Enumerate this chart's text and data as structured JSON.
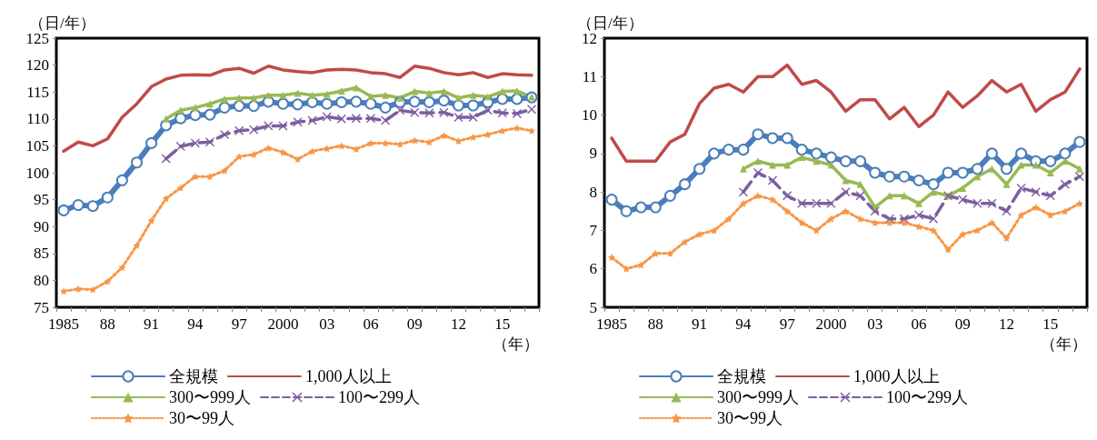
{
  "chart_data": [
    {
      "type": "line",
      "ylabel": "（日/年）",
      "xlabel": "（年）",
      "legend": "bottom",
      "grid": false,
      "categories": [
        "1985",
        null,
        null,
        "88",
        null,
        null,
        "91",
        null,
        null,
        "94",
        null,
        null,
        "97",
        null,
        null,
        "2000",
        null,
        null,
        "03",
        null,
        null,
        "06",
        null,
        null,
        "09",
        null,
        null,
        "12",
        null,
        null,
        "15",
        null,
        null
      ],
      "ylim": [
        75,
        125
      ],
      "yticks": [
        75,
        80,
        85,
        90,
        95,
        100,
        105,
        110,
        115,
        120,
        125
      ],
      "series": [
        {
          "name": "全規模",
          "color": "#4a7ebb",
          "marker": "circle",
          "line_style": "solid",
          "values": [
            93,
            94.0,
            93.8,
            95.4,
            98.6,
            101.9,
            105.5,
            108.8,
            110.1,
            110.7,
            110.8,
            112.1,
            112.4,
            112.4,
            113.2,
            112.8,
            112.7,
            113.1,
            112.8,
            113.1,
            113.2,
            112.8,
            112.1,
            113.1,
            113.2,
            113.1,
            113.4,
            112.5,
            112.5,
            113.1,
            113.7,
            113.7,
            114.0
          ]
        },
        {
          "name": "1,000人以上",
          "color": "#be4b48",
          "marker": "none",
          "line_style": "solid",
          "values": [
            104.0,
            105.7,
            105.0,
            106.3,
            110.3,
            112.8,
            116.0,
            117.4,
            118.1,
            118.2,
            118.1,
            119.1,
            119.4,
            118.5,
            119.8,
            119.1,
            118.8,
            118.6,
            119.1,
            119.2,
            119.1,
            118.6,
            118.4,
            117.7,
            119.8,
            119.4,
            118.6,
            118.2,
            118.6,
            117.7,
            118.4,
            118.2,
            118.1
          ]
        },
        {
          "name": "300〜999人",
          "color": "#98b954",
          "marker": "triangle",
          "line_style": "solid",
          "values": [
            null,
            null,
            null,
            null,
            null,
            null,
            null,
            110.0,
            111.6,
            112.1,
            112.8,
            113.7,
            113.9,
            113.9,
            114.4,
            114.4,
            114.8,
            114.4,
            114.6,
            115.2,
            115.8,
            114.2,
            114.4,
            113.9,
            115.1,
            114.8,
            115.1,
            113.9,
            114.4,
            114.1,
            115.1,
            115.2,
            114.1
          ]
        },
        {
          "name": "100〜299人",
          "color": "#7d5fa0",
          "marker": "cross",
          "line_style": "dashed",
          "values": [
            null,
            null,
            null,
            null,
            null,
            null,
            null,
            102.6,
            104.9,
            105.5,
            105.7,
            107.1,
            107.8,
            108.0,
            108.7,
            108.7,
            109.4,
            109.7,
            110.4,
            110.0,
            110.1,
            110.1,
            109.7,
            111.6,
            111.2,
            111.1,
            111.2,
            110.3,
            110.3,
            111.6,
            111.1,
            111.0,
            111.8
          ]
        },
        {
          "name": "30〜99人",
          "color": "#f79646",
          "marker": "star",
          "line_style": "dotted",
          "values": [
            78.0,
            78.4,
            78.3,
            79.8,
            82.4,
            86.5,
            91.1,
            95.2,
            97.2,
            99.3,
            99.3,
            100.4,
            103.0,
            103.4,
            104.6,
            103.8,
            102.5,
            104.0,
            104.5,
            105.0,
            104.4,
            105.5,
            105.5,
            105.3,
            106.0,
            105.7,
            106.9,
            105.9,
            106.6,
            107.1,
            107.8,
            108.3,
            107.8
          ]
        }
      ]
    },
    {
      "type": "line",
      "ylabel": "（日/年）",
      "xlabel": "（年）",
      "legend": "bottom",
      "grid": false,
      "categories": [
        "1985",
        null,
        null,
        "88",
        null,
        null,
        "91",
        null,
        null,
        "94",
        null,
        null,
        "97",
        null,
        null,
        "2000",
        null,
        null,
        "03",
        null,
        null,
        "06",
        null,
        null,
        "09",
        null,
        null,
        "12",
        null,
        null,
        "15",
        null,
        null
      ],
      "ylim": [
        5,
        12
      ],
      "yticks": [
        5,
        6,
        7,
        8,
        9,
        10,
        11,
        12
      ],
      "series": [
        {
          "name": "全規模",
          "color": "#4a7ebb",
          "marker": "circle",
          "line_style": "solid",
          "values": [
            7.8,
            7.5,
            7.6,
            7.6,
            7.9,
            8.2,
            8.6,
            9.0,
            9.1,
            9.1,
            9.5,
            9.4,
            9.4,
            9.1,
            9.0,
            8.9,
            8.8,
            8.8,
            8.5,
            8.4,
            8.4,
            8.3,
            8.2,
            8.5,
            8.5,
            8.6,
            9.0,
            8.6,
            9.0,
            8.8,
            8.8,
            9.0,
            9.3
          ]
        },
        {
          "name": "1,000人以上",
          "color": "#be4b48",
          "marker": "none",
          "line_style": "solid",
          "values": [
            9.4,
            8.8,
            8.8,
            8.8,
            9.3,
            9.5,
            10.3,
            10.7,
            10.8,
            10.6,
            11.0,
            11.0,
            11.3,
            10.8,
            10.9,
            10.6,
            10.1,
            10.4,
            10.4,
            9.9,
            10.2,
            9.7,
            10.0,
            10.6,
            10.2,
            10.5,
            10.9,
            10.6,
            10.8,
            10.1,
            10.4,
            10.6,
            11.2
          ]
        },
        {
          "name": "300〜999人",
          "color": "#98b954",
          "marker": "triangle",
          "line_style": "solid",
          "values": [
            null,
            null,
            null,
            null,
            null,
            null,
            null,
            null,
            null,
            8.6,
            8.8,
            8.7,
            8.7,
            8.9,
            8.8,
            8.7,
            8.3,
            8.2,
            7.6,
            7.9,
            7.9,
            7.7,
            8.0,
            7.9,
            8.1,
            8.4,
            8.6,
            8.2,
            8.7,
            8.7,
            8.5,
            8.8,
            8.6
          ]
        },
        {
          "name": "100〜299人",
          "color": "#7d5fa0",
          "marker": "cross",
          "line_style": "dashed",
          "values": [
            null,
            null,
            null,
            null,
            null,
            null,
            null,
            null,
            null,
            8.0,
            8.5,
            8.3,
            7.9,
            7.7,
            7.7,
            7.7,
            8.0,
            7.9,
            7.5,
            7.3,
            7.3,
            7.4,
            7.3,
            7.9,
            7.8,
            7.7,
            7.7,
            7.5,
            8.1,
            8.0,
            7.9,
            8.2,
            8.4
          ]
        },
        {
          "name": "30〜99人",
          "color": "#f79646",
          "marker": "star",
          "line_style": "dotted",
          "values": [
            6.3,
            6.0,
            6.1,
            6.4,
            6.4,
            6.7,
            6.9,
            7.0,
            7.3,
            7.7,
            7.9,
            7.8,
            7.5,
            7.2,
            7.0,
            7.3,
            7.5,
            7.3,
            7.2,
            7.2,
            7.2,
            7.1,
            7.0,
            6.5,
            6.9,
            7.0,
            7.2,
            6.8,
            7.4,
            7.6,
            7.4,
            7.5,
            7.7
          ]
        }
      ]
    }
  ]
}
